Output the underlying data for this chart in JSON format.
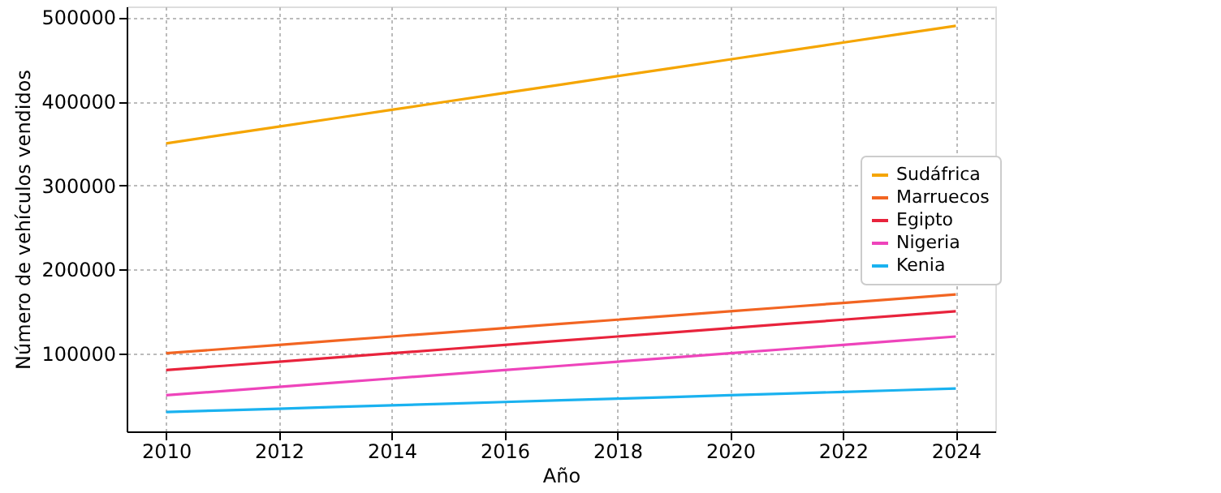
{
  "chart_data": {
    "type": "line",
    "xlabel": "Año",
    "ylabel": "Número de vehículos vendidos",
    "x": [
      2010,
      2011,
      2012,
      2013,
      2014,
      2015,
      2016,
      2017,
      2018,
      2019,
      2020,
      2021,
      2022,
      2023,
      2024
    ],
    "series": [
      {
        "name": "Sudáfrica",
        "color": "#f5a500",
        "values": [
          350000,
          360000,
          370000,
          380000,
          390000,
          400000,
          410000,
          420000,
          430000,
          440000,
          450000,
          460000,
          470000,
          480000,
          490000
        ]
      },
      {
        "name": "Marruecos",
        "color": "#f26522",
        "values": [
          100000,
          105000,
          110000,
          115000,
          120000,
          125000,
          130000,
          135000,
          140000,
          145000,
          150000,
          155000,
          160000,
          165000,
          170000
        ]
      },
      {
        "name": "Egipto",
        "color": "#e8233c",
        "values": [
          80000,
          85000,
          90000,
          95000,
          100000,
          105000,
          110000,
          115000,
          120000,
          125000,
          130000,
          135000,
          140000,
          145000,
          150000
        ]
      },
      {
        "name": "Nigeria",
        "color": "#ee44bb",
        "values": [
          50000,
          55000,
          60000,
          65000,
          70000,
          75000,
          80000,
          85000,
          90000,
          95000,
          100000,
          105000,
          110000,
          115000,
          120000
        ]
      },
      {
        "name": "Kenia",
        "color": "#1ab2f0",
        "values": [
          30000,
          32000,
          34000,
          36000,
          38000,
          40000,
          42000,
          44000,
          46000,
          48000,
          50000,
          52000,
          54000,
          56000,
          58000
        ]
      }
    ],
    "xlim": [
      2009.3,
      2024.7
    ],
    "xticks": [
      2010,
      2012,
      2014,
      2016,
      2018,
      2020,
      2022,
      2024
    ],
    "ylim": [
      7000,
      513000
    ],
    "yticks": [
      100000,
      200000,
      300000,
      400000,
      500000
    ],
    "grid": true,
    "legend": "right",
    "marker": "none",
    "line_style": "solid"
  }
}
